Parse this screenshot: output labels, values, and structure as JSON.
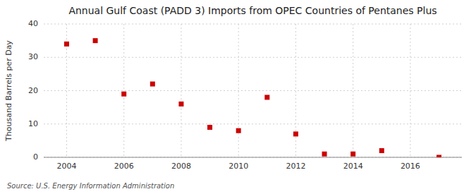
{
  "chart_data": {
    "type": "scatter",
    "title": "Annual Gulf Coast (PADD 3) Imports from OPEC Countries of Pentanes Plus",
    "ylabel": "Thousand Barrels per Day",
    "annotations": [
      "Source: U.S. Energy Information Administration"
    ],
    "x": [
      2004,
      2005,
      2006,
      2007,
      2008,
      2009,
      2010,
      2011,
      2012,
      2013,
      2014,
      2015,
      2017
    ],
    "values": [
      34,
      35,
      19,
      22,
      16,
      9,
      8,
      18,
      7,
      1,
      1,
      2,
      0
    ],
    "color": "#cc0000",
    "marker": "square",
    "xlim": [
      2003.2,
      2017.8
    ],
    "ylim": [
      0,
      40
    ],
    "xticks": [
      2004,
      2006,
      2008,
      2010,
      2012,
      2014,
      2016
    ],
    "yticks": [
      0,
      10,
      20,
      30,
      40
    ],
    "grid": true
  }
}
